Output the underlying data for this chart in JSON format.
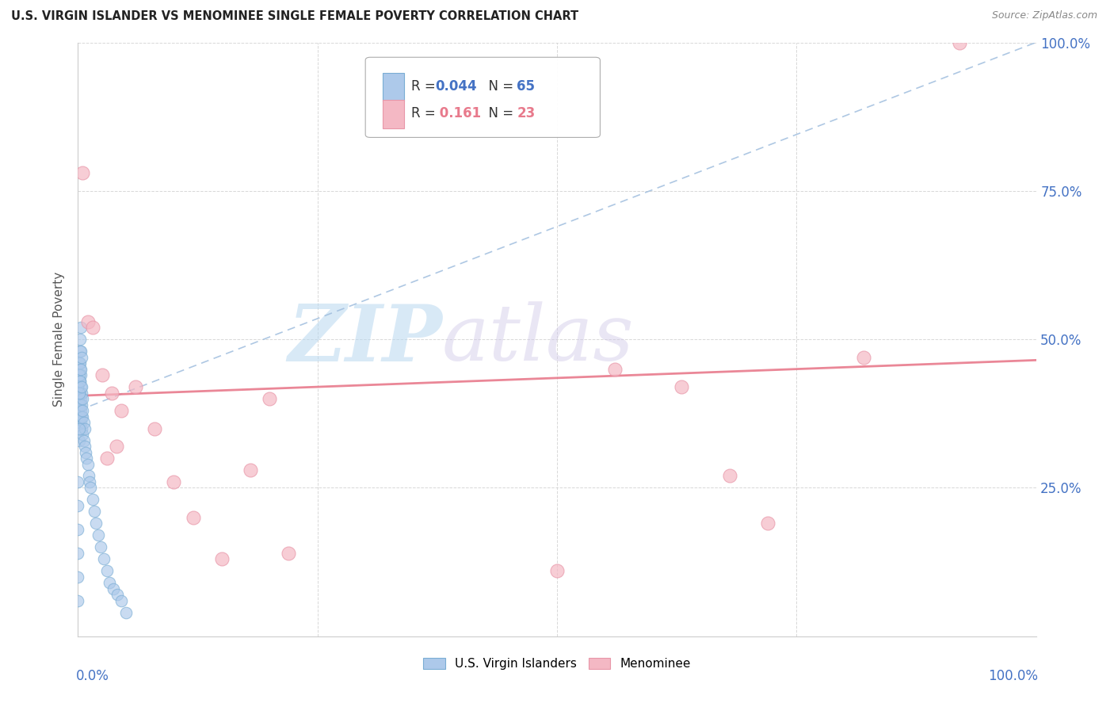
{
  "title": "U.S. VIRGIN ISLANDER VS MENOMINEE SINGLE FEMALE POVERTY CORRELATION CHART",
  "source": "Source: ZipAtlas.com",
  "ylabel": "Single Female Poverty",
  "legend_r1": "R = 0.044",
  "legend_n1": "N = 65",
  "legend_r2": "R =  0.161",
  "legend_n2": "N = 23",
  "blue_face_color": "#adc9ea",
  "blue_edge_color": "#7aadd4",
  "pink_face_color": "#f4b8c4",
  "pink_edge_color": "#e896a8",
  "blue_line_color": "#a0bede",
  "pink_line_color": "#e87a8c",
  "title_color": "#222222",
  "source_color": "#888888",
  "label_color": "#4472c4",
  "ylabel_color": "#555555",
  "grid_color": "#d8d8d8",
  "background_color": "#ffffff",
  "watermark_color": "#cce4f5",
  "blue_scatter_x": [
    0.0,
    0.0,
    0.0,
    0.0,
    0.0,
    0.0,
    0.001,
    0.001,
    0.001,
    0.001,
    0.001,
    0.001,
    0.002,
    0.002,
    0.002,
    0.002,
    0.002,
    0.002,
    0.003,
    0.003,
    0.003,
    0.003,
    0.003,
    0.004,
    0.004,
    0.004,
    0.004,
    0.005,
    0.005,
    0.005,
    0.006,
    0.006,
    0.007,
    0.007,
    0.008,
    0.009,
    0.01,
    0.011,
    0.012,
    0.013,
    0.015,
    0.017,
    0.019,
    0.021,
    0.024,
    0.027,
    0.03,
    0.033,
    0.037,
    0.041,
    0.045,
    0.05,
    0.0,
    0.001,
    0.002,
    0.002,
    0.003,
    0.003,
    0.004,
    0.001,
    0.002,
    0.003,
    0.004,
    0.005,
    0.001
  ],
  "blue_scatter_y": [
    0.06,
    0.1,
    0.14,
    0.18,
    0.22,
    0.26,
    0.33,
    0.36,
    0.38,
    0.4,
    0.43,
    0.46,
    0.37,
    0.39,
    0.41,
    0.43,
    0.45,
    0.48,
    0.36,
    0.38,
    0.4,
    0.42,
    0.44,
    0.35,
    0.37,
    0.39,
    0.41,
    0.34,
    0.37,
    0.4,
    0.33,
    0.36,
    0.32,
    0.35,
    0.31,
    0.3,
    0.29,
    0.27,
    0.26,
    0.25,
    0.23,
    0.21,
    0.19,
    0.17,
    0.15,
    0.13,
    0.11,
    0.09,
    0.08,
    0.07,
    0.06,
    0.04,
    0.42,
    0.44,
    0.46,
    0.5,
    0.52,
    0.48,
    0.47,
    0.41,
    0.43,
    0.45,
    0.42,
    0.38,
    0.35
  ],
  "pink_scatter_x": [
    0.005,
    0.01,
    0.015,
    0.025,
    0.035,
    0.045,
    0.06,
    0.08,
    0.1,
    0.12,
    0.15,
    0.18,
    0.22,
    0.5,
    0.56,
    0.63,
    0.68,
    0.72,
    0.82,
    0.92,
    0.03,
    0.2,
    0.04
  ],
  "pink_scatter_y": [
    0.78,
    0.53,
    0.52,
    0.44,
    0.41,
    0.38,
    0.42,
    0.35,
    0.26,
    0.2,
    0.13,
    0.28,
    0.14,
    0.11,
    0.45,
    0.42,
    0.27,
    0.19,
    0.47,
    1.0,
    0.3,
    0.4,
    0.32
  ],
  "blue_line_x0": 0.0,
  "blue_line_x1": 1.0,
  "blue_line_y0": 0.38,
  "blue_line_y1": 1.0,
  "pink_line_x0": 0.0,
  "pink_line_x1": 1.0,
  "pink_line_y0": 0.405,
  "pink_line_y1": 0.465,
  "xlim": [
    0.0,
    1.0
  ],
  "ylim": [
    0.0,
    1.0
  ],
  "xticks": [
    0.0,
    0.25,
    0.5,
    0.75,
    1.0
  ],
  "yticks": [
    0.0,
    0.25,
    0.5,
    0.75,
    1.0
  ],
  "ytick_labels": [
    "",
    "25.0%",
    "50.0%",
    "75.0%",
    "100.0%"
  ],
  "watermark_zip": "ZIP",
  "watermark_atlas": "atlas"
}
